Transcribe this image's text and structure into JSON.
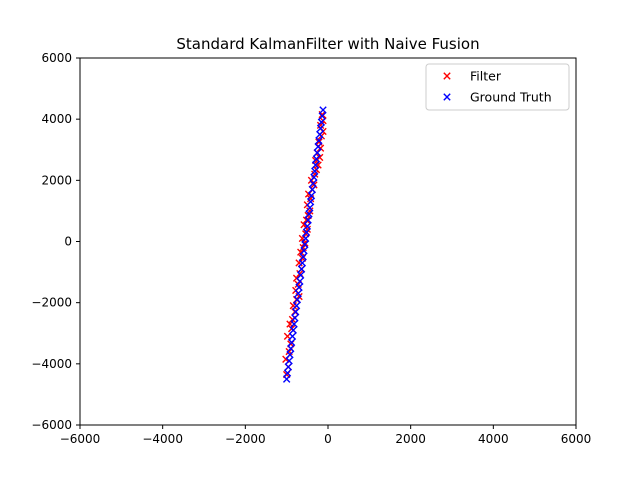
{
  "chart_data": {
    "type": "scatter",
    "title": "Standard KalmanFilter with Naive Fusion",
    "xlabel": "",
    "ylabel": "",
    "xlim": [
      -6000,
      6000
    ],
    "ylim": [
      -6000,
      6000
    ],
    "xticks": [
      -6000,
      -4000,
      -2000,
      0,
      2000,
      4000,
      6000
    ],
    "yticks": [
      -6000,
      -4000,
      -2000,
      0,
      2000,
      4000,
      6000
    ],
    "grid": false,
    "legend_position": "top-right",
    "marker": "x",
    "series": [
      {
        "name": "Filter",
        "color": "#ff0000",
        "points": [
          [
            -1000,
            -4350
          ],
          [
            -960,
            -4100
          ],
          [
            -1020,
            -3850
          ],
          [
            -940,
            -3600
          ],
          [
            -900,
            -3350
          ],
          [
            -980,
            -3100
          ],
          [
            -880,
            -2850
          ],
          [
            -920,
            -2700
          ],
          [
            -860,
            -2550
          ],
          [
            -800,
            -2300
          ],
          [
            -840,
            -2100
          ],
          [
            -760,
            -1900
          ],
          [
            -700,
            -1800
          ],
          [
            -780,
            -1600
          ],
          [
            -720,
            -1400
          ],
          [
            -760,
            -1200
          ],
          [
            -680,
            -1050
          ],
          [
            -640,
            -900
          ],
          [
            -700,
            -700
          ],
          [
            -620,
            -550
          ],
          [
            -660,
            -350
          ],
          [
            -600,
            -200
          ],
          [
            -560,
            -50
          ],
          [
            -620,
            100
          ],
          [
            -540,
            250
          ],
          [
            -500,
            400
          ],
          [
            -580,
            550
          ],
          [
            -520,
            700
          ],
          [
            -480,
            850
          ],
          [
            -440,
            1000
          ],
          [
            -500,
            1200
          ],
          [
            -420,
            1400
          ],
          [
            -470,
            1550
          ],
          [
            -380,
            1700
          ],
          [
            -340,
            1850
          ],
          [
            -400,
            2000
          ],
          [
            -320,
            2200
          ],
          [
            -280,
            2350
          ],
          [
            -240,
            2500
          ],
          [
            -300,
            2650
          ],
          [
            -200,
            2750
          ],
          [
            -260,
            2900
          ],
          [
            -180,
            3050
          ],
          [
            -220,
            3250
          ],
          [
            -160,
            3450
          ],
          [
            -120,
            3600
          ],
          [
            -180,
            3800
          ],
          [
            -120,
            3950
          ],
          [
            -140,
            4150
          ]
        ]
      },
      {
        "name": "Ground Truth",
        "color": "#0000ff",
        "points": [
          [
            -1000,
            -4500
          ],
          [
            -980,
            -4300
          ],
          [
            -960,
            -4100
          ],
          [
            -940,
            -3900
          ],
          [
            -920,
            -3700
          ],
          [
            -900,
            -3500
          ],
          [
            -880,
            -3300
          ],
          [
            -860,
            -3100
          ],
          [
            -840,
            -2900
          ],
          [
            -820,
            -2700
          ],
          [
            -800,
            -2500
          ],
          [
            -780,
            -2300
          ],
          [
            -760,
            -2100
          ],
          [
            -740,
            -1900
          ],
          [
            -720,
            -1700
          ],
          [
            -700,
            -1500
          ],
          [
            -680,
            -1300
          ],
          [
            -660,
            -1100
          ],
          [
            -640,
            -900
          ],
          [
            -620,
            -700
          ],
          [
            -600,
            -500
          ],
          [
            -580,
            -300
          ],
          [
            -560,
            -100
          ],
          [
            -540,
            100
          ],
          [
            -520,
            300
          ],
          [
            -500,
            500
          ],
          [
            -480,
            700
          ],
          [
            -460,
            900
          ],
          [
            -440,
            1100
          ],
          [
            -420,
            1300
          ],
          [
            -400,
            1500
          ],
          [
            -380,
            1700
          ],
          [
            -360,
            1900
          ],
          [
            -340,
            2100
          ],
          [
            -320,
            2300
          ],
          [
            -300,
            2500
          ],
          [
            -280,
            2700
          ],
          [
            -260,
            2900
          ],
          [
            -240,
            3100
          ],
          [
            -220,
            3300
          ],
          [
            -200,
            3500
          ],
          [
            -180,
            3700
          ],
          [
            -160,
            3900
          ],
          [
            -140,
            4100
          ],
          [
            -120,
            4300
          ]
        ]
      }
    ]
  }
}
